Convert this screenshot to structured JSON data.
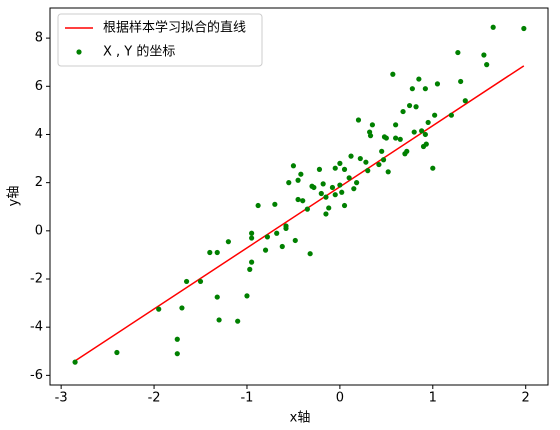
{
  "chart_data": {
    "type": "scatter",
    "x_label": "x轴",
    "y_label": "y轴",
    "xlim": [
      -3.12,
      2.24
    ],
    "ylim": [
      -6.4,
      9.25
    ],
    "xticks": [
      -3,
      -2,
      -1,
      0,
      1,
      2
    ],
    "yticks": [
      -6,
      -4,
      -2,
      0,
      2,
      4,
      6,
      8
    ],
    "legend": "upper left",
    "series": [
      {
        "name": "根据样本学习拟合的直线",
        "type": "line",
        "color": "#ff0000",
        "x": [
          -2.85,
          1.98
        ],
        "values": [
          -5.4,
          6.85
        ]
      },
      {
        "name": "X , Y 的坐标",
        "type": "scatter",
        "color": "#008000",
        "x": [
          -2.85,
          -2.4,
          -1.95,
          -1.75,
          -1.75,
          -1.7,
          -1.65,
          -1.5,
          -1.4,
          -1.32,
          -1.32,
          -1.3,
          -1.2,
          -1.1,
          -1.0,
          -0.97,
          -0.95,
          -0.95,
          -0.95,
          -0.88,
          -0.8,
          -0.78,
          -0.7,
          -0.68,
          -0.62,
          -0.58,
          -0.58,
          -0.55,
          -0.5,
          -0.48,
          -0.45,
          -0.45,
          -0.42,
          -0.4,
          -0.35,
          -0.32,
          -0.28,
          -0.22,
          -0.2,
          -0.18,
          -0.15,
          -0.15,
          -0.12,
          -0.08,
          -0.05,
          -0.05,
          0.0,
          0.0,
          0.02,
          0.05,
          0.05,
          0.1,
          0.12,
          0.15,
          0.18,
          0.2,
          0.22,
          0.28,
          0.3,
          0.32,
          0.33,
          0.35,
          0.42,
          0.45,
          0.47,
          0.48,
          0.5,
          0.52,
          0.57,
          0.6,
          0.65,
          0.68,
          0.7,
          0.72,
          0.75,
          0.78,
          0.8,
          0.82,
          0.85,
          0.88,
          0.9,
          0.92,
          0.93,
          0.95,
          1.0,
          1.02,
          1.05,
          1.2,
          1.27,
          1.3,
          1.35,
          1.55,
          1.58,
          1.65,
          1.98,
          0.92,
          -0.3,
          0.6
        ],
        "values": [
          -5.45,
          -5.05,
          -3.25,
          -4.5,
          -5.1,
          -3.2,
          -2.1,
          -2.1,
          -0.9,
          -0.9,
          -2.75,
          -3.7,
          -0.45,
          -3.75,
          -2.7,
          -1.6,
          -1.3,
          -0.3,
          -0.1,
          1.05,
          -0.8,
          -0.25,
          1.1,
          -0.1,
          -0.65,
          0.1,
          0.2,
          2.0,
          2.7,
          -0.4,
          2.1,
          1.3,
          2.35,
          1.25,
          0.9,
          -0.95,
          1.8,
          2.55,
          1.55,
          1.95,
          0.7,
          1.4,
          0.95,
          1.8,
          2.6,
          1.5,
          2.8,
          1.9,
          1.6,
          2.55,
          1.05,
          2.2,
          3.1,
          1.75,
          2.0,
          4.6,
          3.0,
          2.85,
          2.5,
          4.1,
          3.95,
          4.4,
          2.75,
          3.3,
          2.95,
          3.9,
          3.85,
          2.45,
          6.5,
          4.4,
          3.8,
          4.95,
          3.2,
          3.3,
          5.2,
          5.9,
          4.1,
          5.15,
          6.3,
          4.15,
          3.5,
          5.9,
          3.6,
          4.5,
          2.6,
          4.8,
          6.1,
          4.8,
          7.4,
          6.2,
          5.4,
          7.3,
          6.9,
          8.45,
          8.4,
          4.0,
          1.85,
          3.85
        ]
      }
    ]
  }
}
